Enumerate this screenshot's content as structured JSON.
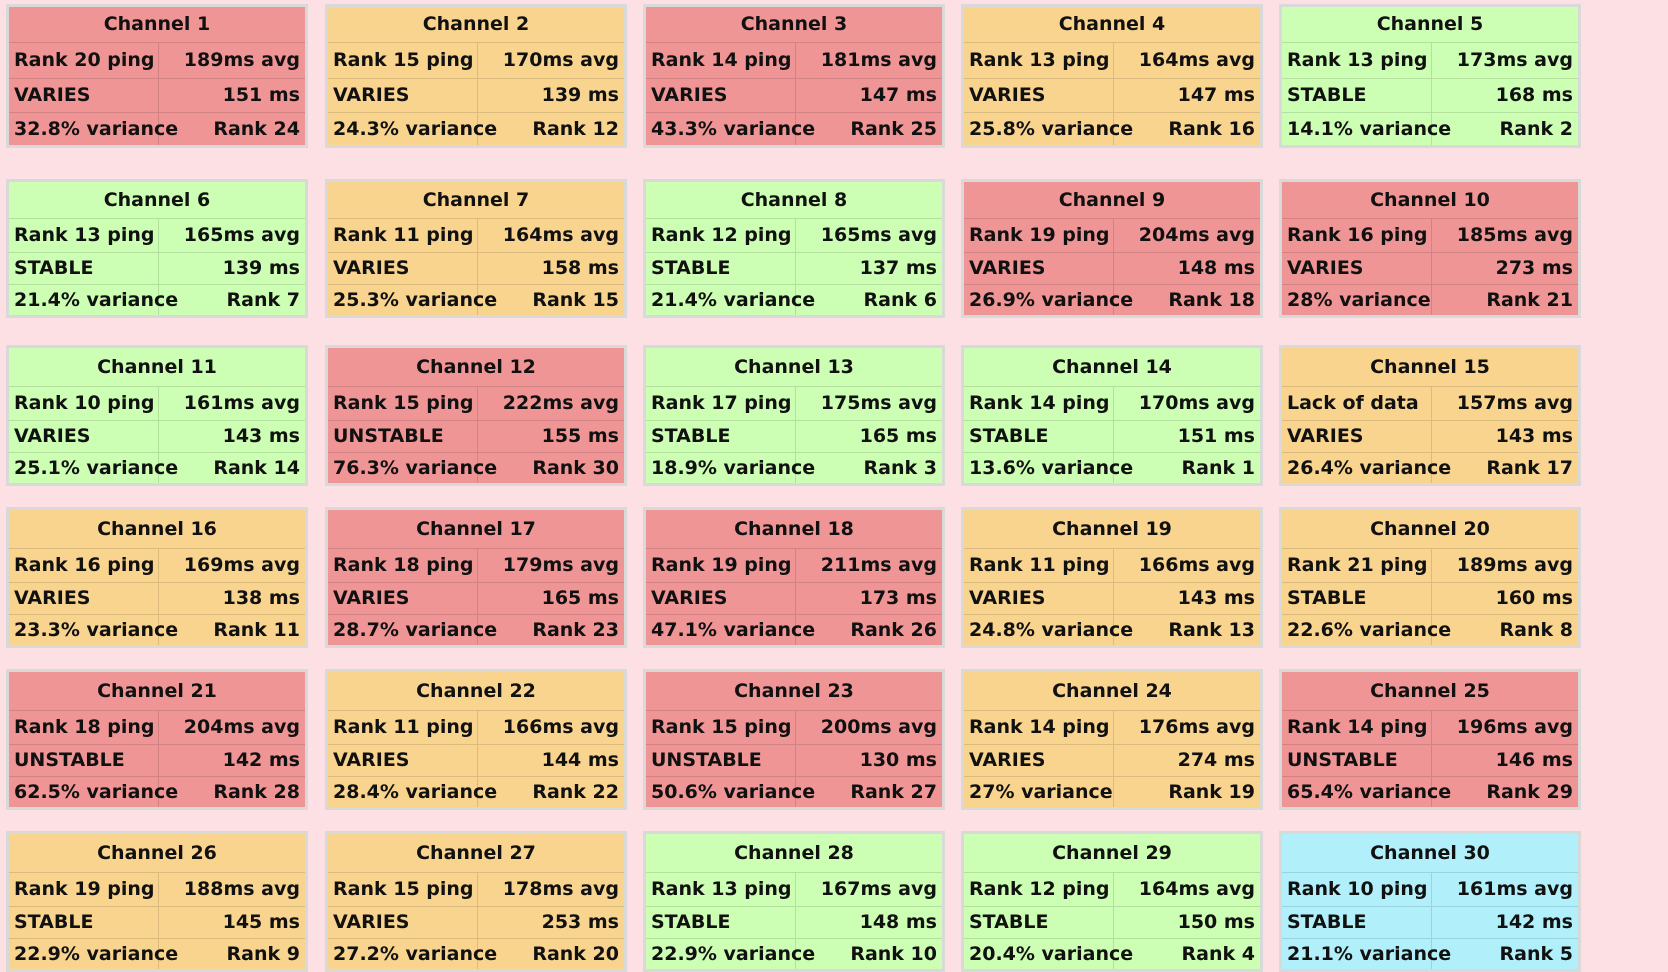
{
  "colors": {
    "red": "#f09595",
    "orange": "#f9d48f",
    "green": "#ccffb3",
    "cyan": "#b1f0fb",
    "background": "#fde0e3"
  },
  "channels": [
    {
      "title": "Channel 1",
      "status_color": "red",
      "ping_rank": "Rank 20 ping",
      "avg": "189ms avg",
      "stability": "VARIES",
      "ms": "151 ms",
      "variance": "32.8% variance",
      "rank": "Rank 24"
    },
    {
      "title": "Channel 2",
      "status_color": "orange",
      "ping_rank": "Rank 15 ping",
      "avg": "170ms avg",
      "stability": "VARIES",
      "ms": "139 ms",
      "variance": "24.3% variance",
      "rank": "Rank 12"
    },
    {
      "title": "Channel 3",
      "status_color": "red",
      "ping_rank": "Rank 14 ping",
      "avg": "181ms avg",
      "stability": "VARIES",
      "ms": "147 ms",
      "variance": "43.3% variance",
      "rank": "Rank 25"
    },
    {
      "title": "Channel 4",
      "status_color": "orange",
      "ping_rank": "Rank 13 ping",
      "avg": "164ms avg",
      "stability": "VARIES",
      "ms": "147 ms",
      "variance": "25.8% variance",
      "rank": "Rank 16"
    },
    {
      "title": "Channel 5",
      "status_color": "green",
      "ping_rank": "Rank 13 ping",
      "avg": "173ms avg",
      "stability": "STABLE",
      "ms": "168 ms",
      "variance": "14.1% variance",
      "rank": "Rank 2"
    },
    {
      "title": "Channel 6",
      "status_color": "green",
      "ping_rank": "Rank 13 ping",
      "avg": "165ms avg",
      "stability": "STABLE",
      "ms": "139 ms",
      "variance": "21.4% variance",
      "rank": "Rank 7"
    },
    {
      "title": "Channel 7",
      "status_color": "orange",
      "ping_rank": "Rank 11 ping",
      "avg": "164ms avg",
      "stability": "VARIES",
      "ms": "158 ms",
      "variance": "25.3% variance",
      "rank": "Rank 15"
    },
    {
      "title": "Channel 8",
      "status_color": "green",
      "ping_rank": "Rank 12 ping",
      "avg": "165ms avg",
      "stability": "STABLE",
      "ms": "137 ms",
      "variance": "21.4% variance",
      "rank": "Rank 6"
    },
    {
      "title": "Channel 9",
      "status_color": "red",
      "ping_rank": "Rank 19 ping",
      "avg": "204ms avg",
      "stability": "VARIES",
      "ms": "148 ms",
      "variance": "26.9% variance",
      "rank": "Rank 18"
    },
    {
      "title": "Channel 10",
      "status_color": "red",
      "ping_rank": "Rank 16 ping",
      "avg": "185ms avg",
      "stability": "VARIES",
      "ms": "273 ms",
      "variance": "28% variance",
      "rank": "Rank 21"
    },
    {
      "title": "Channel 11",
      "status_color": "green",
      "ping_rank": "Rank 10 ping",
      "avg": "161ms avg",
      "stability": "VARIES",
      "ms": "143 ms",
      "variance": "25.1% variance",
      "rank": "Rank 14"
    },
    {
      "title": "Channel 12",
      "status_color": "red",
      "ping_rank": "Rank 15 ping",
      "avg": "222ms avg",
      "stability": "UNSTABLE",
      "ms": "155 ms",
      "variance": "76.3% variance",
      "rank": "Rank 30"
    },
    {
      "title": "Channel 13",
      "status_color": "green",
      "ping_rank": "Rank 17 ping",
      "avg": "175ms avg",
      "stability": "STABLE",
      "ms": "165 ms",
      "variance": "18.9% variance",
      "rank": "Rank 3"
    },
    {
      "title": "Channel 14",
      "status_color": "green",
      "ping_rank": "Rank 14 ping",
      "avg": "170ms avg",
      "stability": "STABLE",
      "ms": "151 ms",
      "variance": "13.6% variance",
      "rank": "Rank 1"
    },
    {
      "title": "Channel 15",
      "status_color": "orange",
      "ping_rank": "Lack of data",
      "avg": "157ms avg",
      "stability": "VARIES",
      "ms": "143 ms",
      "variance": "26.4% variance",
      "rank": "Rank 17"
    },
    {
      "title": "Channel 16",
      "status_color": "orange",
      "ping_rank": "Rank 16 ping",
      "avg": "169ms avg",
      "stability": "VARIES",
      "ms": "138 ms",
      "variance": "23.3% variance",
      "rank": "Rank 11"
    },
    {
      "title": "Channel 17",
      "status_color": "red",
      "ping_rank": "Rank 18 ping",
      "avg": "179ms avg",
      "stability": "VARIES",
      "ms": "165 ms",
      "variance": "28.7% variance",
      "rank": "Rank 23"
    },
    {
      "title": "Channel 18",
      "status_color": "red",
      "ping_rank": "Rank 19 ping",
      "avg": "211ms avg",
      "stability": "VARIES",
      "ms": "173 ms",
      "variance": "47.1% variance",
      "rank": "Rank 26"
    },
    {
      "title": "Channel 19",
      "status_color": "orange",
      "ping_rank": "Rank 11 ping",
      "avg": "166ms avg",
      "stability": "VARIES",
      "ms": "143 ms",
      "variance": "24.8% variance",
      "rank": "Rank 13"
    },
    {
      "title": "Channel 20",
      "status_color": "orange",
      "ping_rank": "Rank 21 ping",
      "avg": "189ms avg",
      "stability": "STABLE",
      "ms": "160 ms",
      "variance": "22.6% variance",
      "rank": "Rank 8"
    },
    {
      "title": "Channel 21",
      "status_color": "red",
      "ping_rank": "Rank 18 ping",
      "avg": "204ms avg",
      "stability": "UNSTABLE",
      "ms": "142 ms",
      "variance": "62.5% variance",
      "rank": "Rank 28"
    },
    {
      "title": "Channel 22",
      "status_color": "orange",
      "ping_rank": "Rank 11 ping",
      "avg": "166ms avg",
      "stability": "VARIES",
      "ms": "144 ms",
      "variance": "28.4% variance",
      "rank": "Rank 22"
    },
    {
      "title": "Channel 23",
      "status_color": "red",
      "ping_rank": "Rank 15 ping",
      "avg": "200ms avg",
      "stability": "UNSTABLE",
      "ms": "130 ms",
      "variance": "50.6% variance",
      "rank": "Rank 27"
    },
    {
      "title": "Channel 24",
      "status_color": "orange",
      "ping_rank": "Rank 14 ping",
      "avg": "176ms avg",
      "stability": "VARIES",
      "ms": "274 ms",
      "variance": "27% variance",
      "rank": "Rank 19"
    },
    {
      "title": "Channel 25",
      "status_color": "red",
      "ping_rank": "Rank 14 ping",
      "avg": "196ms avg",
      "stability": "UNSTABLE",
      "ms": "146 ms",
      "variance": "65.4% variance",
      "rank": "Rank 29"
    },
    {
      "title": "Channel 26",
      "status_color": "orange",
      "ping_rank": "Rank 19 ping",
      "avg": "188ms avg",
      "stability": "STABLE",
      "ms": "145 ms",
      "variance": "22.9% variance",
      "rank": "Rank 9"
    },
    {
      "title": "Channel 27",
      "status_color": "orange",
      "ping_rank": "Rank 15 ping",
      "avg": "178ms avg",
      "stability": "VARIES",
      "ms": "253 ms",
      "variance": "27.2% variance",
      "rank": "Rank 20"
    },
    {
      "title": "Channel 28",
      "status_color": "green",
      "ping_rank": "Rank 13 ping",
      "avg": "167ms avg",
      "stability": "STABLE",
      "ms": "148 ms",
      "variance": "22.9% variance",
      "rank": "Rank 10"
    },
    {
      "title": "Channel 29",
      "status_color": "green",
      "ping_rank": "Rank 12 ping",
      "avg": "164ms avg",
      "stability": "STABLE",
      "ms": "150 ms",
      "variance": "20.4% variance",
      "rank": "Rank 4"
    },
    {
      "title": "Channel 30",
      "status_color": "cyan",
      "ping_rank": "Rank 10 ping",
      "avg": "161ms avg",
      "stability": "STABLE",
      "ms": "142 ms",
      "variance": "21.1% variance",
      "rank": "Rank 5"
    }
  ]
}
